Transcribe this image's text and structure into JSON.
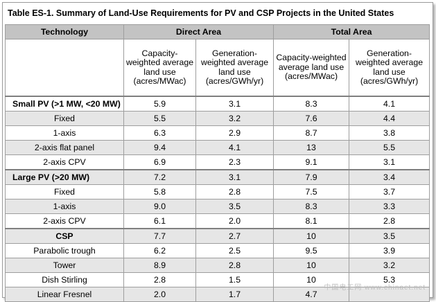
{
  "title": "Table ES-1. Summary of Land-Use Requirements for PV and CSP Projects in the United States",
  "headers": {
    "technology": "Technology",
    "direct_area": "Direct Area",
    "total_area": "Total Area",
    "capacity": "Capacity-weighted average land use (acres/MWac)",
    "generation": "Generation-weighted average land use (acres/GWh/yr)"
  },
  "rows": [
    {
      "label": "Small PV (>1 MW, <20 MW)",
      "v": [
        "5.9",
        "3.1",
        "8.3",
        "4.1"
      ]
    },
    {
      "label": "Fixed",
      "v": [
        "5.5",
        "3.2",
        "7.6",
        "4.4"
      ]
    },
    {
      "label": "1-axis",
      "v": [
        "6.3",
        "2.9",
        "8.7",
        "3.8"
      ]
    },
    {
      "label": "2-axis flat panel",
      "v": [
        "9.4",
        "4.1",
        "13",
        "5.5"
      ]
    },
    {
      "label": "2-axis CPV",
      "v": [
        "6.9",
        "2.3",
        "9.1",
        "3.1"
      ]
    },
    {
      "label": "Large PV (>20 MW)",
      "v": [
        "7.2",
        "3.1",
        "7.9",
        "3.4"
      ]
    },
    {
      "label": "Fixed",
      "v": [
        "5.8",
        "2.8",
        "7.5",
        "3.7"
      ]
    },
    {
      "label": "1-axis",
      "v": [
        "9.0",
        "3.5",
        "8.3",
        "3.3"
      ]
    },
    {
      "label": "2-axis CPV",
      "v": [
        "6.1",
        "2.0",
        "8.1",
        "2.8"
      ]
    },
    {
      "label": "CSP",
      "v": [
        "7.7",
        "2.7",
        "10",
        "3.5"
      ]
    },
    {
      "label": "Parabolic trough",
      "v": [
        "6.2",
        "2.5",
        "9.5",
        "3.9"
      ]
    },
    {
      "label": "Tower",
      "v": [
        "8.9",
        "2.8",
        "10",
        "3.2"
      ]
    },
    {
      "label": "Dish Stirling",
      "v": [
        "2.8",
        "1.5",
        "10",
        "5.3"
      ]
    },
    {
      "label": "Linear Fresnel",
      "v": [
        "2.0",
        "1.7",
        "4.7",
        ""
      ]
    }
  ],
  "watermark": "中国电工网 www.chinaet.net"
}
